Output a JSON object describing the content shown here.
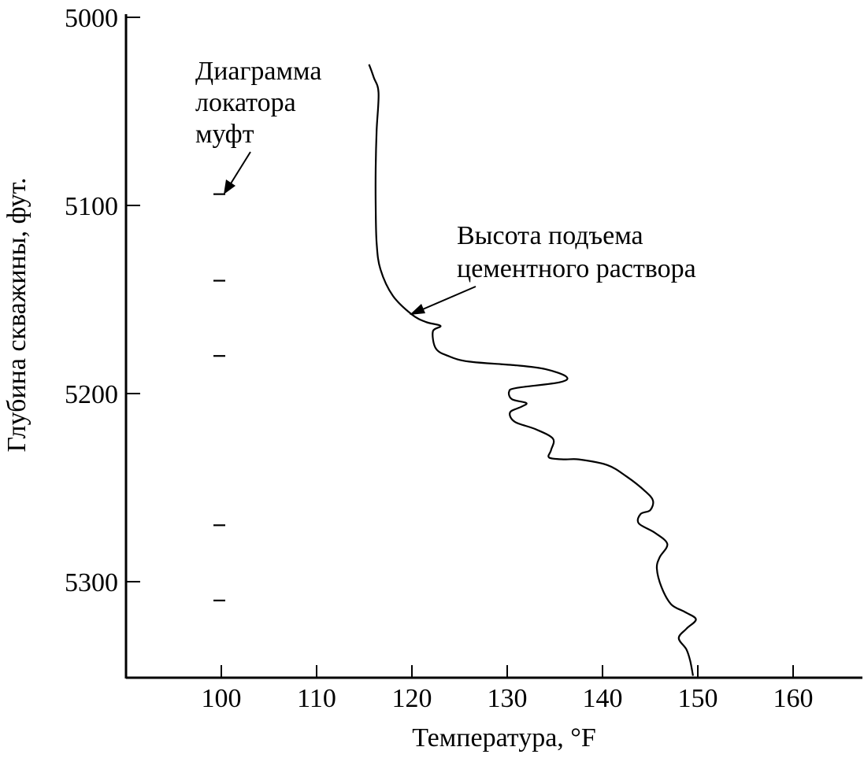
{
  "chart_data": {
    "type": "line",
    "title": "",
    "xlabel": "Температура, °F",
    "ylabel": "Глубина скважины, фут.",
    "xlim": [
      90,
      168
    ],
    "ylim": [
      5000,
      5350
    ],
    "y_inverted": true,
    "grid": false,
    "x_ticks": [
      100,
      110,
      120,
      130,
      140,
      150,
      160
    ],
    "x_tick_labels": [
      "100",
      "110",
      "120",
      "130",
      "140",
      "150",
      "160"
    ],
    "y_ticks": [
      5000,
      5100,
      5200,
      5300
    ],
    "y_tick_labels": [
      "5000",
      "5100",
      "5200",
      "5300"
    ],
    "series": [
      {
        "values": [
          [
            115.5,
            5025
          ],
          [
            116.0,
            5032
          ],
          [
            116.5,
            5040
          ],
          [
            116.3,
            5060
          ],
          [
            116.2,
            5080
          ],
          [
            116.2,
            5100
          ],
          [
            116.3,
            5120
          ],
          [
            116.7,
            5134
          ],
          [
            118.0,
            5148
          ],
          [
            120.0,
            5158
          ],
          [
            121.5,
            5162
          ],
          [
            123.0,
            5164
          ],
          [
            122.2,
            5167
          ],
          [
            122.5,
            5176
          ],
          [
            123.8,
            5180
          ],
          [
            126.0,
            5183
          ],
          [
            131.0,
            5185
          ],
          [
            134.0,
            5187
          ],
          [
            136.2,
            5191
          ],
          [
            135.5,
            5194
          ],
          [
            131.0,
            5197
          ],
          [
            130.2,
            5199
          ],
          [
            130.5,
            5203
          ],
          [
            132.0,
            5205
          ],
          [
            131.5,
            5207
          ],
          [
            130.3,
            5210
          ],
          [
            130.8,
            5215
          ],
          [
            133.0,
            5219
          ],
          [
            134.8,
            5224
          ],
          [
            134.6,
            5230
          ],
          [
            134.4,
            5234
          ],
          [
            136.0,
            5235
          ],
          [
            137.5,
            5235
          ],
          [
            140.5,
            5238
          ],
          [
            142.5,
            5244
          ],
          [
            144.5,
            5252
          ],
          [
            145.3,
            5257
          ],
          [
            145.0,
            5262
          ],
          [
            144.0,
            5264
          ],
          [
            143.8,
            5269
          ],
          [
            145.5,
            5274
          ],
          [
            146.8,
            5280
          ],
          [
            146.0,
            5287
          ],
          [
            145.7,
            5293
          ],
          [
            146.2,
            5303
          ],
          [
            147.2,
            5312
          ],
          [
            148.6,
            5316
          ],
          [
            149.8,
            5320
          ],
          [
            148.8,
            5325
          ],
          [
            148.0,
            5330
          ],
          [
            148.8,
            5336
          ],
          [
            149.2,
            5342
          ],
          [
            149.5,
            5350
          ]
        ]
      }
    ],
    "collar_marks": {
      "x": 100,
      "depths": [
        5094,
        5140,
        5180,
        5270,
        5310
      ]
    },
    "annotations": {
      "collar_locator": [
        "Диаграмма",
        "локатора",
        "муфт"
      ],
      "cement_top": [
        "Высота подъема",
        "цементного раствора"
      ]
    }
  }
}
